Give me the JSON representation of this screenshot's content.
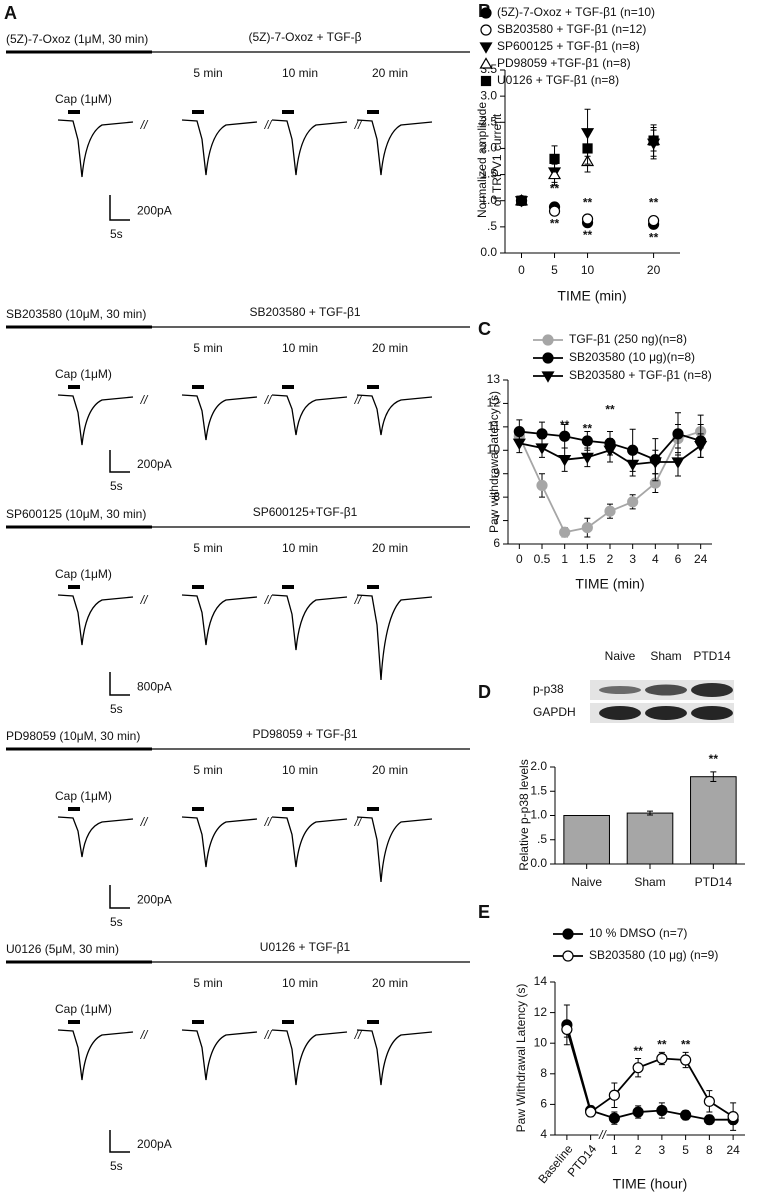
{
  "panel_A": {
    "label": "A",
    "rows": [
      {
        "pretreatment": "(5Z)-7-Oxoz (1μM, 30 min)",
        "treatment": "(5Z)-7-Oxoz + TGF-β",
        "times": [
          "5 min",
          "10 min",
          "20 min"
        ],
        "stimulus": "Cap (1μM)",
        "current_scale": "200pA",
        "time_scale": "5s"
      },
      {
        "pretreatment": "SB203580 (10μM, 30 min)",
        "treatment": "SB203580 + TGF-β1",
        "times": [
          "5 min",
          "10 min",
          "20 min"
        ],
        "stimulus": "Cap (1μM)",
        "current_scale": "200pA",
        "time_scale": "5s"
      },
      {
        "pretreatment": "SP600125 (10μM, 30 min)",
        "treatment": "SP600125+TGF-β1",
        "times": [
          "5 min",
          "10 min",
          "20 min"
        ],
        "stimulus": "Cap (1μM)",
        "current_scale": "800pA",
        "time_scale": "5s"
      },
      {
        "pretreatment": "PD98059 (10μM, 30 min)",
        "treatment": "PD98059 + TGF-β1",
        "times": [
          "5 min",
          "10 min",
          "20 min"
        ],
        "stimulus": "Cap (1μM)",
        "current_scale": "200pA",
        "time_scale": "5s"
      },
      {
        "pretreatment": "U0126 (5μM, 30 min)",
        "treatment": "U0126 + TGF-β1",
        "times": [
          "5 min",
          "10 min",
          "20 min"
        ],
        "stimulus": "Cap (1μM)",
        "current_scale": "200pA",
        "time_scale": "5s"
      }
    ]
  },
  "chart_data": [
    {
      "label": "B",
      "type": "scatter",
      "ylabel": [
        "Normalized amplitude",
        "of TRPV1 current"
      ],
      "xlabel": "TIME (min)",
      "x": [
        0,
        5,
        10,
        20
      ],
      "xlim": [
        -2.5,
        24
      ],
      "xticks": [
        0,
        5,
        10,
        20
      ],
      "ylim": [
        0,
        3.5
      ],
      "yticks": [
        {
          "value": 0,
          "label": "0.0"
        },
        {
          "value": 0.5,
          "label": ".5"
        },
        {
          "value": 1,
          "label": "1.0"
        },
        1.5,
        {
          "value": 2,
          "label": "2.0"
        },
        2.5,
        {
          "value": 3,
          "label": "3.0"
        },
        3.5
      ],
      "series": [
        {
          "name": "(5Z)-7-Oxoz + TGF-β1 (n=10)",
          "color": "#000000",
          "fill": "#000000",
          "marker": "circle",
          "values": [
            1.0,
            0.88,
            0.58,
            0.55
          ],
          "errors": [
            0.05,
            0.05,
            0.08,
            0.08
          ]
        },
        {
          "name": "SB203580 + TGF-β1 (n=12)",
          "color": "#000000",
          "fill": "#ffffff",
          "marker": "circle",
          "values": [
            1.0,
            0.8,
            0.65,
            0.62
          ],
          "errors": [
            0.04,
            0.05,
            0.06,
            0.06
          ]
        },
        {
          "name": "SP600125 + TGF-β1 (n=8)",
          "color": "#000000",
          "fill": "#000000",
          "marker": "triangle-down",
          "values": [
            1.0,
            1.55,
            2.3,
            2.1
          ],
          "errors": [
            0.05,
            0.2,
            0.45,
            0.3
          ]
        },
        {
          "name": "PD98059 +TGF-β1 (n=8)",
          "color": "#000000",
          "fill": "#ffffff",
          "marker": "triangle-up",
          "values": [
            1.0,
            1.5,
            1.75,
            2.15
          ],
          "errors": [
            0.05,
            0.2,
            0.2,
            0.2
          ]
        },
        {
          "name": "U0126 + TGF-β1 (n=8)",
          "color": "#000000",
          "fill": "#000000",
          "marker": "square",
          "values": [
            1.0,
            1.8,
            2.0,
            2.15
          ],
          "errors": [
            0.05,
            0.25,
            0.3,
            0.3
          ]
        }
      ],
      "annotations": [
        {
          "text": "**",
          "x": 5,
          "y": 1.22
        },
        {
          "text": "**",
          "x": 5,
          "y": 0.55
        },
        {
          "text": "**",
          "x": 10,
          "y": 0.95
        },
        {
          "text": "**",
          "x": 10,
          "y": 0.33
        },
        {
          "text": "**",
          "x": 20,
          "y": 0.95
        },
        {
          "text": "**",
          "x": 20,
          "y": 0.28
        }
      ]
    },
    {
      "label": "C",
      "type": "line",
      "ylabel": [
        "Paw withdrawal latency (s)"
      ],
      "xlabel": "TIME (min)",
      "categories": [
        "0",
        "0.5",
        "1",
        "1.5",
        "2",
        "3",
        "4",
        "6",
        "24"
      ],
      "ylim": [
        6,
        13
      ],
      "yticks": [
        6,
        7,
        8,
        9,
        10,
        11,
        12,
        13
      ],
      "series": [
        {
          "name": "TGF-β1 (250 ng)(n=8)",
          "color": "#a6a6a6",
          "fill": "#a6a6a6",
          "marker": "circle",
          "values": [
            10.6,
            8.5,
            6.5,
            6.7,
            7.4,
            7.8,
            8.6,
            10.5,
            10.8
          ],
          "errors": [
            0.3,
            0.5,
            0.2,
            0.4,
            0.3,
            0.3,
            0.4,
            0.6,
            0.7
          ]
        },
        {
          "name": "SB203580 (10 μg)(n=8)",
          "color": "#000000",
          "fill": "#000000",
          "marker": "circle",
          "values": [
            10.8,
            10.7,
            10.6,
            10.4,
            10.3,
            10.0,
            9.6,
            10.7,
            10.4
          ],
          "errors": [
            0.5,
            0.5,
            0.5,
            0.4,
            0.5,
            0.9,
            0.9,
            0.9,
            0.7
          ]
        },
        {
          "name": "SB203580 + TGF-β1 (n=8)",
          "color": "#000000",
          "fill": "#000000",
          "marker": "triangle-down",
          "values": [
            10.3,
            10.1,
            9.6,
            9.7,
            10.0,
            9.4,
            9.5,
            9.5,
            10.2
          ],
          "errors": [
            0.4,
            0.4,
            0.5,
            0.4,
            0.5,
            0.5,
            0.5,
            0.6,
            0.5
          ]
        }
      ],
      "annotations": [
        {
          "text": "**",
          "x": "1",
          "y": 11.05
        },
        {
          "text": "**",
          "x": "1.5",
          "y": 10.9
        },
        {
          "text": "**",
          "x": "2",
          "y": 11.7
        }
      ]
    },
    {
      "label": "D",
      "type": "bar",
      "ylabel": [
        "Relative p-p38 levels"
      ],
      "blot": {
        "lanes": [
          "Naive",
          "Sham",
          "PTD14"
        ],
        "bands": [
          "p-p38",
          "GAPDH"
        ]
      },
      "categories": [
        "Naive",
        "Sham",
        "PTD14"
      ],
      "values": [
        1.0,
        1.05,
        1.8
      ],
      "errors": [
        0,
        0.04,
        0.1
      ],
      "color": "#a6a6a6",
      "ylim": [
        0,
        2
      ],
      "yticks": [
        {
          "value": 0,
          "label": "0.0"
        },
        {
          "value": 0.5,
          "label": ".5"
        },
        {
          "value": 1,
          "label": "1.0"
        },
        1.5,
        {
          "value": 2,
          "label": "2.0"
        }
      ],
      "annotations": [
        {
          "text": "**",
          "x": "PTD14",
          "y": 2.15
        }
      ]
    },
    {
      "label": "E",
      "type": "line",
      "ylabel": [
        "Paw Withdrawal Latency (s)"
      ],
      "xlabel": "TIME (hour)",
      "categories": [
        "Baseline",
        "PTD14",
        "1",
        "2",
        "3",
        "5",
        "8",
        "24"
      ],
      "ylim": [
        4,
        14
      ],
      "yticks": [
        4,
        6,
        8,
        10,
        12,
        14
      ],
      "series": [
        {
          "name": "10 % DMSO (n=7)",
          "color": "#000000",
          "fill": "#000000",
          "marker": "circle",
          "values": [
            11.2,
            5.6,
            5.1,
            5.5,
            5.6,
            5.3,
            5.0,
            5.0
          ],
          "errors": [
            1.3,
            0.3,
            0.4,
            0.4,
            0.5,
            0.3,
            0.3,
            0.3
          ]
        },
        {
          "name": "SB203580 (10 μg) (n=9)",
          "color": "#000000",
          "fill": "#ffffff",
          "marker": "circle",
          "values": [
            10.9,
            5.5,
            6.6,
            8.4,
            9.0,
            8.9,
            6.2,
            5.2
          ],
          "errors": [
            0.5,
            0.3,
            0.8,
            0.6,
            0.4,
            0.5,
            0.7,
            0.9
          ]
        }
      ],
      "annotations": [
        {
          "text": "**",
          "x": "2",
          "y": 9.45
        },
        {
          "text": "**",
          "x": "3",
          "y": 9.85
        },
        {
          "text": "**",
          "x": "5",
          "y": 9.85
        }
      ]
    }
  ]
}
